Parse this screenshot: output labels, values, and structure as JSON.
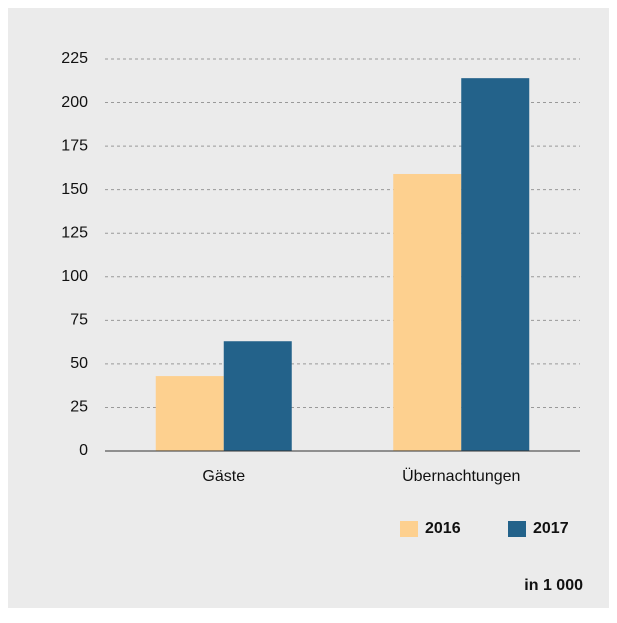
{
  "chart_data": {
    "type": "bar",
    "categories": [
      "Gäste",
      "Übernachtungen"
    ],
    "series": [
      {
        "name": "2016",
        "color": "#fdd08f",
        "values": [
          43,
          159
        ]
      },
      {
        "name": "2017",
        "color": "#23628a",
        "values": [
          63,
          214
        ]
      }
    ],
    "ylim": [
      0,
      225
    ],
    "yticks": [
      0,
      25,
      50,
      75,
      100,
      125,
      150,
      175,
      200,
      225
    ],
    "grid": true,
    "legend": "bottom-right",
    "annotation": "in 1 000"
  }
}
